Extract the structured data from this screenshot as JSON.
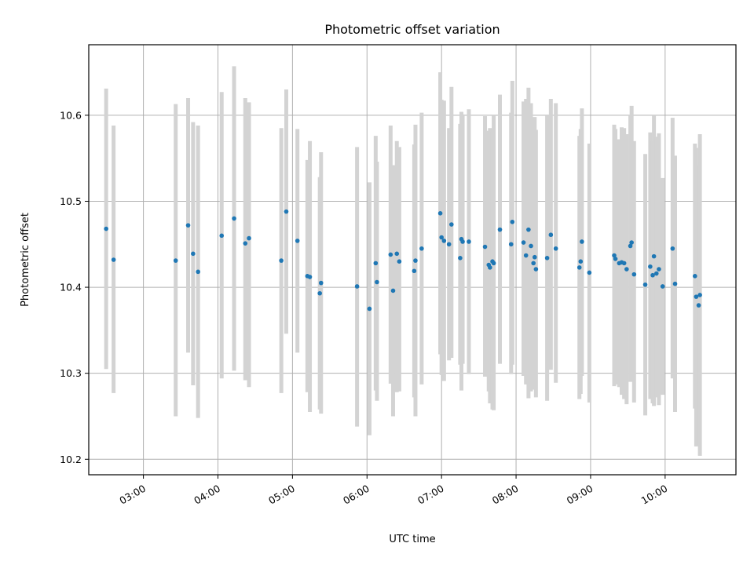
{
  "chart_data": {
    "type": "scatter",
    "title": "Photometric offset variation",
    "xlabel": "UTC time",
    "ylabel": "Photometric offset",
    "x_ticks": [
      "03:00",
      "04:00",
      "05:00",
      "06:00",
      "07:00",
      "08:00",
      "09:00",
      "10:00"
    ],
    "y_ticks": [
      "10.2",
      "10.3",
      "10.4",
      "10.5",
      "10.6"
    ],
    "xlim": [
      "02:16",
      "10:57"
    ],
    "ylim": [
      10.182,
      10.682
    ],
    "grid": true,
    "colors": {
      "point": "#1f77b4",
      "errorbar": "#d3d3d3",
      "grid": "#b0b0b0"
    },
    "series": [
      {
        "x": [
          "02:30",
          "02:36",
          "03:26",
          "03:36",
          "03:40",
          "03:44",
          "04:03",
          "04:13",
          "04:22",
          "04:25",
          "04:51",
          "04:55",
          "05:04",
          "05:12",
          "05:14",
          "05:22",
          "05:23",
          "05:52",
          "06:02",
          "06:07",
          "06:08",
          "06:19",
          "06:21",
          "06:24",
          "06:26",
          "06:38",
          "06:39",
          "06:44",
          "06:59",
          "07:00",
          "07:02",
          "07:06",
          "07:08",
          "07:15",
          "07:16",
          "07:17",
          "07:22",
          "07:35",
          "07:38",
          "07:39",
          "07:41",
          "07:42",
          "07:47",
          "07:56",
          "07:57",
          "08:06",
          "08:08",
          "08:10",
          "08:12",
          "08:14",
          "08:15",
          "08:16",
          "08:25",
          "08:28",
          "08:32",
          "08:51",
          "08:52",
          "08:53",
          "08:59",
          "09:19",
          "09:20",
          "09:23",
          "09:25",
          "09:27",
          "09:29",
          "09:32",
          "09:33",
          "09:35",
          "09:44",
          "09:48",
          "09:50",
          "09:51",
          "09:53",
          "09:55",
          "09:58",
          "10:06",
          "10:08",
          "10:24",
          "10:25",
          "10:27",
          "10:28"
        ],
        "y": [
          10.468,
          10.432,
          10.431,
          10.472,
          10.439,
          10.418,
          10.46,
          10.48,
          10.451,
          10.457,
          10.431,
          10.488,
          10.454,
          10.413,
          10.412,
          10.393,
          10.405,
          10.401,
          10.375,
          10.428,
          10.406,
          10.438,
          10.396,
          10.439,
          10.43,
          10.419,
          10.431,
          10.445,
          10.486,
          10.458,
          10.454,
          10.45,
          10.473,
          10.434,
          10.456,
          10.453,
          10.453,
          10.447,
          10.426,
          10.423,
          10.43,
          10.428,
          10.467,
          10.45,
          10.476,
          10.452,
          10.437,
          10.467,
          10.448,
          10.428,
          10.435,
          10.421,
          10.434,
          10.461,
          10.445,
          10.423,
          10.43,
          10.453,
          10.417,
          10.437,
          10.433,
          10.428,
          10.429,
          10.428,
          10.421,
          10.448,
          10.452,
          10.415,
          10.403,
          10.424,
          10.414,
          10.436,
          10.416,
          10.421,
          10.401,
          10.445,
          10.404,
          10.413,
          10.389,
          10.379,
          10.391
        ],
        "yerr_low": [
          10.305,
          10.277,
          10.25,
          10.324,
          10.286,
          10.248,
          10.294,
          10.303,
          10.292,
          10.284,
          10.277,
          10.346,
          10.324,
          10.278,
          10.255,
          10.258,
          10.253,
          10.238,
          10.228,
          10.28,
          10.268,
          10.288,
          10.25,
          10.278,
          10.279,
          10.272,
          10.25,
          10.287,
          10.322,
          10.298,
          10.291,
          10.315,
          10.318,
          10.31,
          10.28,
          10.311,
          10.299,
          10.296,
          10.279,
          10.265,
          10.258,
          10.257,
          10.311,
          10.299,
          10.31,
          10.297,
          10.287,
          10.271,
          10.279,
          10.281,
          10.294,
          10.272,
          10.268,
          10.304,
          10.289,
          10.27,
          10.276,
          10.297,
          10.266,
          10.285,
          10.287,
          10.284,
          10.275,
          10.27,
          10.264,
          10.29,
          10.296,
          10.266,
          10.251,
          10.27,
          10.265,
          10.262,
          10.272,
          10.263,
          10.275,
          10.294,
          10.255,
          10.259,
          10.215,
          10.216,
          10.204
        ],
        "yerr_high": [
          10.631,
          10.588,
          10.613,
          10.62,
          10.592,
          10.588,
          10.627,
          10.657,
          10.62,
          10.615,
          10.585,
          10.63,
          10.584,
          10.548,
          10.57,
          10.528,
          10.557,
          10.563,
          10.522,
          10.576,
          10.546,
          10.588,
          10.542,
          10.57,
          10.563,
          10.566,
          10.589,
          10.603,
          10.65,
          10.618,
          10.617,
          10.585,
          10.633,
          10.59,
          10.604,
          10.601,
          10.607,
          10.599,
          10.582,
          10.585,
          10.581,
          10.6,
          10.624,
          10.603,
          10.64,
          10.616,
          10.619,
          10.632,
          10.614,
          10.586,
          10.598,
          10.583,
          10.6,
          10.619,
          10.614,
          10.576,
          10.584,
          10.608,
          10.567,
          10.589,
          10.584,
          10.572,
          10.586,
          10.585,
          10.578,
          10.6,
          10.611,
          10.57,
          10.555,
          10.58,
          10.57,
          10.6,
          10.575,
          10.579,
          10.527,
          10.597,
          10.553,
          10.567,
          10.562,
          10.542,
          10.578
        ]
      }
    ]
  }
}
